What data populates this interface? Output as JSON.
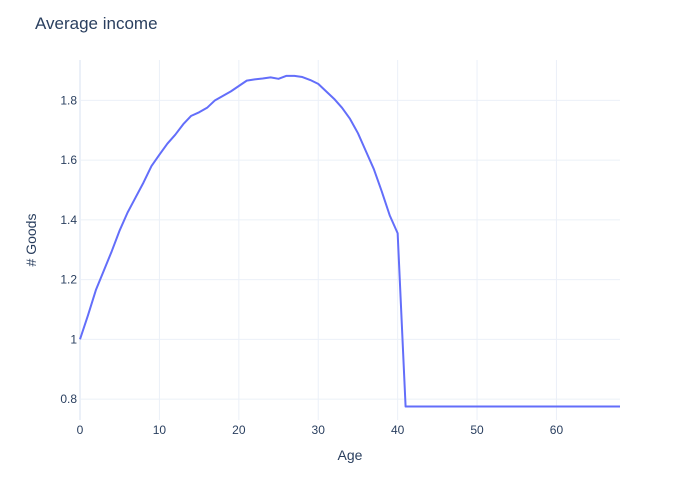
{
  "chart_data": {
    "type": "line",
    "title": "Average income",
    "xlabel": "Age",
    "ylabel": "# Goods",
    "xlim": [
      0,
      68
    ],
    "ylim": [
      0.73,
      1.935
    ],
    "xticks": [
      "0",
      "10",
      "20",
      "30",
      "40",
      "50",
      "60"
    ],
    "yticks": [
      "0.8",
      "1",
      "1.2",
      "1.4",
      "1.6",
      "1.8"
    ],
    "grid": true,
    "line_color": "#636efa",
    "series": [
      {
        "x": [
          0,
          1,
          2,
          3,
          4,
          5,
          6,
          7,
          8,
          9,
          10,
          11,
          12,
          13,
          14,
          15,
          16,
          17,
          18,
          19,
          20,
          21,
          22,
          23,
          24,
          25,
          26,
          27,
          28,
          29,
          30,
          31,
          32,
          33,
          34,
          35,
          36,
          37,
          38,
          39,
          40,
          41,
          42,
          43,
          44,
          45,
          46,
          47,
          48,
          49,
          50,
          51,
          52,
          53,
          54,
          55,
          56,
          57,
          58,
          59,
          60,
          61,
          62,
          63,
          64,
          65,
          66,
          67,
          68
        ],
        "y": [
          1.0,
          1.08,
          1.165,
          1.23,
          1.295,
          1.365,
          1.425,
          1.475,
          1.525,
          1.58,
          1.618,
          1.655,
          1.685,
          1.72,
          1.748,
          1.76,
          1.775,
          1.8,
          1.815,
          1.83,
          1.848,
          1.866,
          1.87,
          1.873,
          1.877,
          1.872,
          1.882,
          1.882,
          1.878,
          1.868,
          1.855,
          1.83,
          1.805,
          1.775,
          1.738,
          1.69,
          1.63,
          1.57,
          1.495,
          1.415,
          1.355,
          0.775,
          0.775,
          0.775,
          0.775,
          0.775,
          0.775,
          0.775,
          0.775,
          0.775,
          0.775,
          0.775,
          0.775,
          0.775,
          0.775,
          0.775,
          0.775,
          0.775,
          0.775,
          0.775,
          0.775,
          0.775,
          0.775,
          0.775,
          0.775,
          0.775,
          0.775,
          0.775,
          0.775
        ]
      }
    ]
  }
}
